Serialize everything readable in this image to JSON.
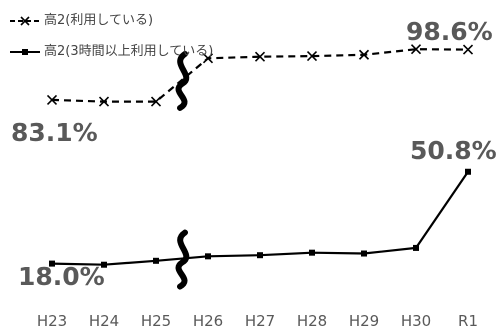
{
  "chart_data": {
    "type": "line",
    "categories": [
      "H23",
      "H24",
      "H25",
      "H26",
      "H27",
      "H28",
      "H29",
      "H30",
      "R1"
    ],
    "series": [
      {
        "name": "高2(利用している)",
        "marker": "x",
        "line": "dashed",
        "values": [
          83.1,
          82.6,
          82.6,
          95.9,
          96.4,
          96.6,
          97.0,
          98.7,
          98.6
        ]
      },
      {
        "name": "高2(3時間以上利用している)",
        "marker": "square",
        "line": "solid",
        "values": [
          18.0,
          17.6,
          19.0,
          20.6,
          21.0,
          21.9,
          21.6,
          23.6,
          50.8
        ]
      }
    ],
    "axis_break_between": [
      "H25",
      "H26"
    ],
    "data_labels": [
      "83.1%",
      "98.6%",
      "18.0%",
      "50.8%"
    ],
    "line_color": "#000000",
    "label_color": "#595959"
  }
}
